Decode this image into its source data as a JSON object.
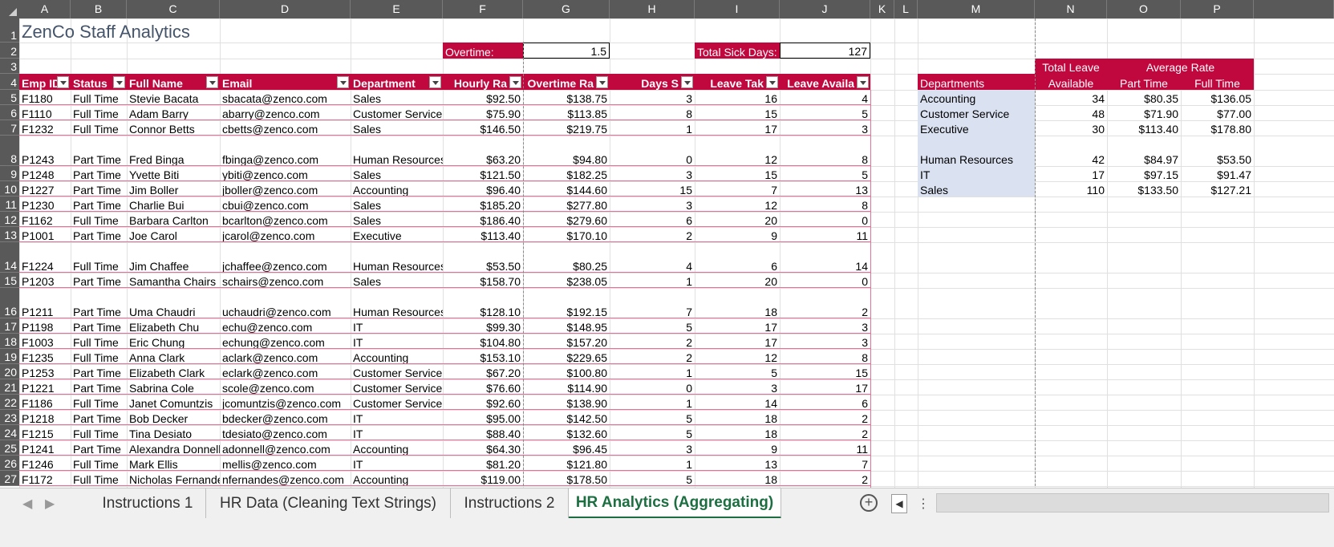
{
  "columns": [
    "A",
    "B",
    "C",
    "D",
    "E",
    "F",
    "G",
    "H",
    "I",
    "J",
    "K",
    "L",
    "M",
    "N",
    "O",
    "P"
  ],
  "rows": [
    "1",
    "2",
    "3",
    "4",
    "5",
    "6",
    "7",
    "8",
    "9",
    "10",
    "11",
    "12",
    "13",
    "14",
    "15",
    "16",
    "17",
    "18",
    "19",
    "20",
    "21",
    "22",
    "23",
    "24",
    "25",
    "26",
    "27"
  ],
  "title": "ZenCo Staff Analytics",
  "overtime_label": "Overtime:",
  "overtime_value": "1.5",
  "sick_label": "Total Sick Days:",
  "sick_value": "127",
  "table_headers": [
    "Emp ID",
    "Status",
    "Full Name",
    "Email",
    "Department",
    "Hourly Ra",
    "Overtime Ra",
    "Days S",
    "Leave Tak",
    "Leave Availa"
  ],
  "employees": [
    [
      "F1180",
      "Full Time",
      "Stevie Bacata",
      "sbacata@zenco.com",
      "Sales",
      "$92.50",
      "$138.75",
      "3",
      "16",
      "4"
    ],
    [
      "F1110",
      "Full Time",
      "Adam Barry",
      "abarry@zenco.com",
      "Customer Service",
      "$75.90",
      "$113.85",
      "8",
      "15",
      "5"
    ],
    [
      "F1232",
      "Full Time",
      "Connor Betts",
      "cbetts@zenco.com",
      "Sales",
      "$146.50",
      "$219.75",
      "1",
      "17",
      "3"
    ],
    [
      "P1243",
      "Part Time",
      "Fred Binga",
      "fbinga@zenco.com",
      "Human Resources",
      "$63.20",
      "$94.80",
      "0",
      "12",
      "8"
    ],
    [
      "P1248",
      "Part Time",
      "Yvette Biti",
      "ybiti@zenco.com",
      "Sales",
      "$121.50",
      "$182.25",
      "3",
      "15",
      "5"
    ],
    [
      "P1227",
      "Part Time",
      "Jim Boller",
      "jboller@zenco.com",
      "Accounting",
      "$96.40",
      "$144.60",
      "15",
      "7",
      "13"
    ],
    [
      "P1230",
      "Part Time",
      "Charlie Bui",
      "cbui@zenco.com",
      "Sales",
      "$185.20",
      "$277.80",
      "3",
      "12",
      "8"
    ],
    [
      "F1162",
      "Full Time",
      "Barbara Carlton",
      "bcarlton@zenco.com",
      "Sales",
      "$186.40",
      "$279.60",
      "6",
      "20",
      "0"
    ],
    [
      "P1001",
      "Part Time",
      "Joe Carol",
      "jcarol@zenco.com",
      "Executive",
      "$113.40",
      "$170.10",
      "2",
      "9",
      "11"
    ],
    [
      "F1224",
      "Full Time",
      "Jim Chaffee",
      "jchaffee@zenco.com",
      "Human Resources",
      "$53.50",
      "$80.25",
      "4",
      "6",
      "14"
    ],
    [
      "P1203",
      "Part Time",
      "Samantha Chairs",
      "schairs@zenco.com",
      "Sales",
      "$158.70",
      "$238.05",
      "1",
      "20",
      "0"
    ],
    [
      "P1211",
      "Part Time",
      "Uma Chaudri",
      "uchaudri@zenco.com",
      "Human Resources",
      "$128.10",
      "$192.15",
      "7",
      "18",
      "2"
    ],
    [
      "P1198",
      "Part Time",
      "Elizabeth Chu",
      "echu@zenco.com",
      "IT",
      "$99.30",
      "$148.95",
      "5",
      "17",
      "3"
    ],
    [
      "F1003",
      "Full Time",
      "Eric Chung",
      "echung@zenco.com",
      "IT",
      "$104.80",
      "$157.20",
      "2",
      "17",
      "3"
    ],
    [
      "F1235",
      "Full Time",
      "Anna Clark",
      "aclark@zenco.com",
      "Accounting",
      "$153.10",
      "$229.65",
      "2",
      "12",
      "8"
    ],
    [
      "P1253",
      "Part Time",
      "Elizabeth Clark",
      "eclark@zenco.com",
      "Customer Service",
      "$67.20",
      "$100.80",
      "1",
      "5",
      "15"
    ],
    [
      "P1221",
      "Part Time",
      "Sabrina Cole",
      "scole@zenco.com",
      "Customer Service",
      "$76.60",
      "$114.90",
      "0",
      "3",
      "17"
    ],
    [
      "F1186",
      "Full Time",
      "Janet Comuntzis",
      "jcomuntzis@zenco.com",
      "Customer Service",
      "$92.60",
      "$138.90",
      "1",
      "14",
      "6"
    ],
    [
      "P1218",
      "Part Time",
      "Bob Decker",
      "bdecker@zenco.com",
      "IT",
      "$95.00",
      "$142.50",
      "5",
      "18",
      "2"
    ],
    [
      "F1215",
      "Full Time",
      "Tina Desiato",
      "tdesiato@zenco.com",
      "IT",
      "$88.40",
      "$132.60",
      "5",
      "18",
      "2"
    ],
    [
      "P1241",
      "Part Time",
      "Alexandra Donnell",
      "adonnell@zenco.com",
      "Accounting",
      "$64.30",
      "$96.45",
      "3",
      "9",
      "11"
    ],
    [
      "F1246",
      "Full Time",
      "Mark Ellis",
      "mellis@zenco.com",
      "IT",
      "$81.20",
      "$121.80",
      "1",
      "13",
      "7"
    ],
    [
      "F1172",
      "Full Time",
      "Nicholas Fernandes",
      "nfernandes@zenco.com",
      "Accounting",
      "$119.00",
      "$178.50",
      "5",
      "18",
      "2"
    ]
  ],
  "summary": {
    "hdr_total_leave": "Total Leave",
    "hdr_available": "Available",
    "hdr_average_rate": "Average Rate",
    "hdr_departments": "Departments",
    "hdr_part_time": "Part Time",
    "hdr_full_time": "Full Time",
    "rows": [
      [
        "Accounting",
        "34",
        "$80.35",
        "$136.05"
      ],
      [
        "Customer Service",
        "48",
        "$71.90",
        "$77.00"
      ],
      [
        "Executive",
        "30",
        "$113.40",
        "$178.80"
      ],
      [
        "Human Resources",
        "42",
        "$84.97",
        "$53.50"
      ],
      [
        "IT",
        "17",
        "$97.15",
        "$91.47"
      ],
      [
        "Sales",
        "110",
        "$133.50",
        "$127.21"
      ]
    ]
  },
  "sheet_tabs": [
    "Instructions 1",
    "HR Data (Cleaning Text Strings)",
    "Instructions 2",
    "HR Analytics (Aggregating)"
  ],
  "active_tab_index": 3,
  "colors": {
    "header_fill": "#c0073e",
    "dept_fill": "#dae1f1",
    "title_color": "#44546a",
    "active_tab": "#1d6f42"
  }
}
